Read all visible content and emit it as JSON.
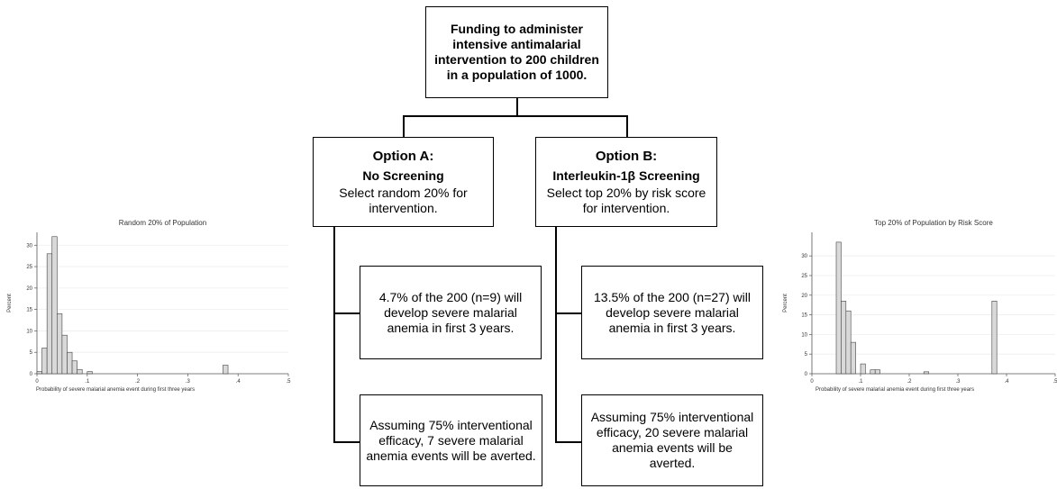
{
  "top": {
    "text": "Funding to administer intensive antimalarial intervention to 200 children in a population of 1000."
  },
  "option_a": {
    "title": "Option A:",
    "subtitle": "No Screening",
    "desc": "Select random 20% for intervention.",
    "outcome1": "4.7% of the 200 (n=9) will develop severe malarial anemia in first 3 years.",
    "outcome2": "Assuming 75% interventional efficacy, 7 severe malarial anemia events will be averted."
  },
  "option_b": {
    "title": "Option B:",
    "subtitle": "Interleukin-1β Screening",
    "desc": "Select top 20% by risk score for intervention.",
    "outcome1": "13.5% of the 200 (n=27) will develop severe malarial anemia in first 3 years.",
    "outcome2": "Assuming 75% interventional efficacy, 20 severe malarial anemia events will be averted."
  },
  "chart_data": [
    {
      "type": "bar",
      "title": "Random 20% of Population",
      "xlabel": "Probability of severe malarial anemia event during first three years",
      "ylabel": "Percent",
      "xlim": [
        0,
        0.5
      ],
      "ylim": [
        0,
        33
      ],
      "xticks": [
        "0",
        ".1",
        ".2",
        ".3",
        ".4",
        ".5"
      ],
      "yticks": [
        "0",
        "5",
        "10",
        "15",
        "20",
        "25",
        "30"
      ],
      "bin_width": 0.01,
      "x": [
        0.005,
        0.015,
        0.025,
        0.035,
        0.045,
        0.055,
        0.065,
        0.075,
        0.085,
        0.105,
        0.375
      ],
      "values": [
        0.5,
        6,
        28,
        32,
        14,
        9,
        5,
        3,
        1,
        0.5,
        2
      ]
    },
    {
      "type": "bar",
      "title": "Top 20% of Population by Risk Score",
      "xlabel": "Probability of severe malarial anemia event during first three years",
      "ylabel": "Percent",
      "xlim": [
        0,
        0.5
      ],
      "ylim": [
        0,
        36
      ],
      "xticks": [
        "0",
        ".1",
        ".2",
        ".3",
        ".4",
        ".5"
      ],
      "yticks": [
        "0",
        "5",
        "10",
        "15",
        "20",
        "25",
        "30"
      ],
      "bin_width": 0.01,
      "x": [
        0.055,
        0.065,
        0.075,
        0.085,
        0.105,
        0.125,
        0.135,
        0.235,
        0.375
      ],
      "values": [
        33.5,
        18.5,
        16,
        8,
        2.5,
        1,
        1,
        0.5,
        18.5
      ]
    }
  ]
}
